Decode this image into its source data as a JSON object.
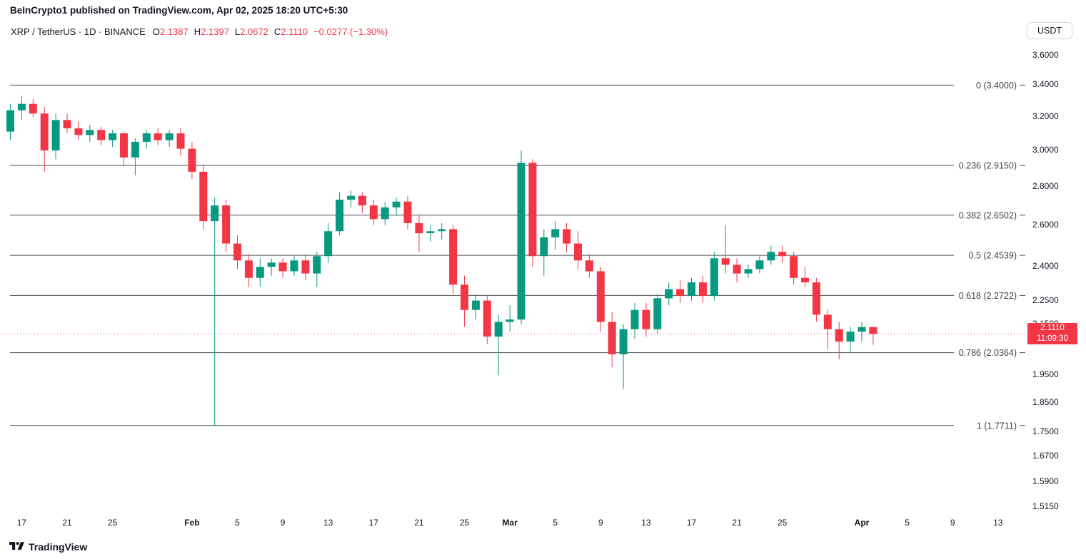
{
  "header": {
    "attribution": "BeInCrypto1 published on TradingView.com, Apr 02, 2025 18:20 UTC+5:30"
  },
  "legend": {
    "title": "XRP / TetherUS · 1D · BINANCE",
    "items": [
      {
        "label": "O",
        "value": "2.1387"
      },
      {
        "label": "H",
        "value": "2.1397"
      },
      {
        "label": "L",
        "value": "2.0672"
      },
      {
        "label": "C",
        "value": "2.1110"
      }
    ],
    "change": "−0.0277 (−1.30%)",
    "value_color": "#f23645"
  },
  "toolbar": {
    "currency_label": "USDT"
  },
  "price_axis": {
    "labels": [
      {
        "label": "3.6000",
        "value": 3.6
      },
      {
        "label": "3.4000",
        "value": 3.4
      },
      {
        "label": "3.2000",
        "value": 3.2
      },
      {
        "label": "3.0000",
        "value": 3.0
      },
      {
        "label": "2.8000",
        "value": 2.8
      },
      {
        "label": "2.6000",
        "value": 2.6
      },
      {
        "label": "2.4000",
        "value": 2.4
      },
      {
        "label": "2.2500",
        "value": 2.25
      },
      {
        "label": "2.1500",
        "value": 2.15
      },
      {
        "label": "1.9500",
        "value": 1.95
      },
      {
        "label": "1.8500",
        "value": 1.85
      },
      {
        "label": "1.7500",
        "value": 1.75
      },
      {
        "label": "1.6700",
        "value": 1.67
      },
      {
        "label": "1.5900",
        "value": 1.59
      },
      {
        "label": "1.5150",
        "value": 1.515
      }
    ],
    "badge": {
      "price": "2.1110",
      "countdown": "11:09:30",
      "color": "#f23645"
    }
  },
  "time_axis": {
    "labels": [
      {
        "label": "17",
        "i": 1,
        "bold": false
      },
      {
        "label": "21",
        "i": 5,
        "bold": false
      },
      {
        "label": "25",
        "i": 9,
        "bold": false
      },
      {
        "label": "Feb",
        "i": 16,
        "bold": true
      },
      {
        "label": "5",
        "i": 20,
        "bold": false
      },
      {
        "label": "9",
        "i": 24,
        "bold": false
      },
      {
        "label": "13",
        "i": 28,
        "bold": false
      },
      {
        "label": "17",
        "i": 32,
        "bold": false
      },
      {
        "label": "21",
        "i": 36,
        "bold": false
      },
      {
        "label": "25",
        "i": 40,
        "bold": false
      },
      {
        "label": "Mar",
        "i": 44,
        "bold": true
      },
      {
        "label": "5",
        "i": 48,
        "bold": false
      },
      {
        "label": "9",
        "i": 52,
        "bold": false
      },
      {
        "label": "13",
        "i": 56,
        "bold": false
      },
      {
        "label": "17",
        "i": 60,
        "bold": false
      },
      {
        "label": "21",
        "i": 64,
        "bold": false
      },
      {
        "label": "25",
        "i": 68,
        "bold": false
      },
      {
        "label": "Apr",
        "i": 75,
        "bold": true
      },
      {
        "label": "5",
        "i": 79,
        "bold": false
      },
      {
        "label": "9",
        "i": 83,
        "bold": false
      },
      {
        "label": "13",
        "i": 87,
        "bold": false
      }
    ]
  },
  "fib_levels": [
    {
      "ratio": "0",
      "price": 3.4,
      "label": "0 (3.4000)"
    },
    {
      "ratio": "0.236",
      "price": 2.915,
      "label": "0.236 (2.9150)"
    },
    {
      "ratio": "0.382",
      "price": 2.6502,
      "label": "0.382 (2.6502)"
    },
    {
      "ratio": "0.5",
      "price": 2.4539,
      "label": "0.5 (2.4539)"
    },
    {
      "ratio": "0.618",
      "price": 2.2722,
      "label": "0.618 (2.2722)"
    },
    {
      "ratio": "0.786",
      "price": 2.0364,
      "label": "0.786 (2.0364)"
    },
    {
      "ratio": "1",
      "price": 1.7711,
      "label": "1 (1.7711)"
    }
  ],
  "watermark": {
    "text": "TradingView"
  },
  "chart_data": {
    "type": "candlestick",
    "symbol": "XRP/TetherUS",
    "exchange": "BINANCE",
    "interval": "1D",
    "scale": "log",
    "up_color": "#089981",
    "down_color": "#f23645",
    "fib_color": "#4a4d55",
    "last_price": 2.111,
    "change_abs": -0.0277,
    "change_pct": -1.3,
    "x_start_date": "2025-01-16",
    "x_end_date": "2025-04-02",
    "visible_price_range": [
      1.515,
      3.7
    ],
    "candles": [
      {
        "d": "Jan 16",
        "o": 3.11,
        "h": 3.28,
        "l": 3.06,
        "c": 3.24
      },
      {
        "d": "Jan 17",
        "o": 3.24,
        "h": 3.33,
        "l": 3.18,
        "c": 3.28
      },
      {
        "d": "Jan 18",
        "o": 3.28,
        "h": 3.31,
        "l": 3.2,
        "c": 3.22
      },
      {
        "d": "Jan 19",
        "o": 3.22,
        "h": 3.26,
        "l": 2.88,
        "c": 3.0
      },
      {
        "d": "Jan 20",
        "o": 3.0,
        "h": 3.22,
        "l": 2.95,
        "c": 3.18
      },
      {
        "d": "Jan 21",
        "o": 3.18,
        "h": 3.22,
        "l": 3.1,
        "c": 3.13
      },
      {
        "d": "Jan 22",
        "o": 3.13,
        "h": 3.17,
        "l": 3.06,
        "c": 3.09
      },
      {
        "d": "Jan 23",
        "o": 3.09,
        "h": 3.15,
        "l": 3.05,
        "c": 3.12
      },
      {
        "d": "Jan 24",
        "o": 3.12,
        "h": 3.14,
        "l": 3.03,
        "c": 3.06
      },
      {
        "d": "Jan 25",
        "o": 3.06,
        "h": 3.12,
        "l": 3.02,
        "c": 3.1
      },
      {
        "d": "Jan 26",
        "o": 3.1,
        "h": 3.11,
        "l": 2.92,
        "c": 2.96
      },
      {
        "d": "Jan 27",
        "o": 2.96,
        "h": 3.07,
        "l": 2.86,
        "c": 3.05
      },
      {
        "d": "Jan 28",
        "o": 3.05,
        "h": 3.12,
        "l": 3.01,
        "c": 3.1
      },
      {
        "d": "Jan 29",
        "o": 3.1,
        "h": 3.13,
        "l": 3.03,
        "c": 3.06
      },
      {
        "d": "Jan 30",
        "o": 3.06,
        "h": 3.12,
        "l": 3.02,
        "c": 3.1
      },
      {
        "d": "Jan 31",
        "o": 3.1,
        "h": 3.13,
        "l": 2.97,
        "c": 3.01
      },
      {
        "d": "Feb 1",
        "o": 3.01,
        "h": 3.05,
        "l": 2.84,
        "c": 2.88
      },
      {
        "d": "Feb 2",
        "o": 2.88,
        "h": 2.92,
        "l": 2.58,
        "c": 2.62
      },
      {
        "d": "Feb 3",
        "o": 2.62,
        "h": 2.74,
        "l": 1.7711,
        "c": 2.7
      },
      {
        "d": "Feb 4",
        "o": 2.7,
        "h": 2.73,
        "l": 2.47,
        "c": 2.51
      },
      {
        "d": "Feb 5",
        "o": 2.51,
        "h": 2.55,
        "l": 2.39,
        "c": 2.43
      },
      {
        "d": "Feb 6",
        "o": 2.43,
        "h": 2.46,
        "l": 2.31,
        "c": 2.35
      },
      {
        "d": "Feb 7",
        "o": 2.35,
        "h": 2.44,
        "l": 2.31,
        "c": 2.4
      },
      {
        "d": "Feb 8",
        "o": 2.4,
        "h": 2.44,
        "l": 2.36,
        "c": 2.42
      },
      {
        "d": "Feb 9",
        "o": 2.42,
        "h": 2.44,
        "l": 2.35,
        "c": 2.38
      },
      {
        "d": "Feb 10",
        "o": 2.38,
        "h": 2.45,
        "l": 2.36,
        "c": 2.43
      },
      {
        "d": "Feb 11",
        "o": 2.43,
        "h": 2.46,
        "l": 2.34,
        "c": 2.37
      },
      {
        "d": "Feb 12",
        "o": 2.37,
        "h": 2.47,
        "l": 2.31,
        "c": 2.45
      },
      {
        "d": "Feb 13",
        "o": 2.45,
        "h": 2.61,
        "l": 2.42,
        "c": 2.57
      },
      {
        "d": "Feb 14",
        "o": 2.57,
        "h": 2.77,
        "l": 2.55,
        "c": 2.73
      },
      {
        "d": "Feb 15",
        "o": 2.73,
        "h": 2.78,
        "l": 2.69,
        "c": 2.75
      },
      {
        "d": "Feb 16",
        "o": 2.75,
        "h": 2.77,
        "l": 2.66,
        "c": 2.7
      },
      {
        "d": "Feb 17",
        "o": 2.7,
        "h": 2.73,
        "l": 2.6,
        "c": 2.63
      },
      {
        "d": "Feb 18",
        "o": 2.63,
        "h": 2.72,
        "l": 2.6,
        "c": 2.69
      },
      {
        "d": "Feb 19",
        "o": 2.69,
        "h": 2.74,
        "l": 2.65,
        "c": 2.72
      },
      {
        "d": "Feb 20",
        "o": 2.72,
        "h": 2.75,
        "l": 2.58,
        "c": 2.61
      },
      {
        "d": "Feb 21",
        "o": 2.61,
        "h": 2.65,
        "l": 2.47,
        "c": 2.56
      },
      {
        "d": "Feb 22",
        "o": 2.56,
        "h": 2.6,
        "l": 2.52,
        "c": 2.57
      },
      {
        "d": "Feb 23",
        "o": 2.57,
        "h": 2.61,
        "l": 2.53,
        "c": 2.58
      },
      {
        "d": "Feb 24",
        "o": 2.58,
        "h": 2.6,
        "l": 2.28,
        "c": 2.32
      },
      {
        "d": "Feb 25",
        "o": 2.32,
        "h": 2.36,
        "l": 2.14,
        "c": 2.21
      },
      {
        "d": "Feb 26",
        "o": 2.21,
        "h": 2.28,
        "l": 2.17,
        "c": 2.25
      },
      {
        "d": "Feb 27",
        "o": 2.25,
        "h": 2.27,
        "l": 2.07,
        "c": 2.1
      },
      {
        "d": "Feb 28",
        "o": 2.1,
        "h": 2.19,
        "l": 1.95,
        "c": 2.16
      },
      {
        "d": "Mar 1",
        "o": 2.16,
        "h": 2.23,
        "l": 2.12,
        "c": 2.17
      },
      {
        "d": "Mar 2",
        "o": 2.17,
        "h": 3.0,
        "l": 2.15,
        "c": 2.93
      },
      {
        "d": "Mar 3",
        "o": 2.93,
        "h": 2.95,
        "l": 2.4,
        "c": 2.45
      },
      {
        "d": "Mar 4",
        "o": 2.45,
        "h": 2.58,
        "l": 2.36,
        "c": 2.54
      },
      {
        "d": "Mar 5",
        "o": 2.54,
        "h": 2.62,
        "l": 2.48,
        "c": 2.58
      },
      {
        "d": "Mar 6",
        "o": 2.58,
        "h": 2.61,
        "l": 2.47,
        "c": 2.51
      },
      {
        "d": "Mar 7",
        "o": 2.51,
        "h": 2.57,
        "l": 2.39,
        "c": 2.43
      },
      {
        "d": "Mar 8",
        "o": 2.43,
        "h": 2.46,
        "l": 2.35,
        "c": 2.38
      },
      {
        "d": "Mar 9",
        "o": 2.38,
        "h": 2.4,
        "l": 2.12,
        "c": 2.16
      },
      {
        "d": "Mar 10",
        "o": 2.16,
        "h": 2.2,
        "l": 1.98,
        "c": 2.03
      },
      {
        "d": "Mar 11",
        "o": 2.03,
        "h": 2.15,
        "l": 1.9,
        "c": 2.13
      },
      {
        "d": "Mar 12",
        "o": 2.13,
        "h": 2.24,
        "l": 2.09,
        "c": 2.21
      },
      {
        "d": "Mar 13",
        "o": 2.21,
        "h": 2.24,
        "l": 2.1,
        "c": 2.13
      },
      {
        "d": "Mar 14",
        "o": 2.13,
        "h": 2.28,
        "l": 2.11,
        "c": 2.26
      },
      {
        "d": "Mar 15",
        "o": 2.26,
        "h": 2.33,
        "l": 2.23,
        "c": 2.3
      },
      {
        "d": "Mar 16",
        "o": 2.3,
        "h": 2.34,
        "l": 2.24,
        "c": 2.27
      },
      {
        "d": "Mar 17",
        "o": 2.27,
        "h": 2.35,
        "l": 2.25,
        "c": 2.33
      },
      {
        "d": "Mar 18",
        "o": 2.33,
        "h": 2.36,
        "l": 2.24,
        "c": 2.27
      },
      {
        "d": "Mar 19",
        "o": 2.27,
        "h": 2.47,
        "l": 2.25,
        "c": 2.44
      },
      {
        "d": "Mar 20",
        "o": 2.44,
        "h": 2.6,
        "l": 2.37,
        "c": 2.41
      },
      {
        "d": "Mar 21",
        "o": 2.41,
        "h": 2.44,
        "l": 2.33,
        "c": 2.37
      },
      {
        "d": "Mar 22",
        "o": 2.37,
        "h": 2.41,
        "l": 2.35,
        "c": 2.39
      },
      {
        "d": "Mar 23",
        "o": 2.39,
        "h": 2.45,
        "l": 2.37,
        "c": 2.43
      },
      {
        "d": "Mar 24",
        "o": 2.43,
        "h": 2.5,
        "l": 2.41,
        "c": 2.47
      },
      {
        "d": "Mar 25",
        "o": 2.47,
        "h": 2.5,
        "l": 2.42,
        "c": 2.45
      },
      {
        "d": "Mar 26",
        "o": 2.45,
        "h": 2.47,
        "l": 2.32,
        "c": 2.35
      },
      {
        "d": "Mar 27",
        "o": 2.35,
        "h": 2.4,
        "l": 2.31,
        "c": 2.33
      },
      {
        "d": "Mar 28",
        "o": 2.33,
        "h": 2.35,
        "l": 2.16,
        "c": 2.19
      },
      {
        "d": "Mar 29",
        "o": 2.19,
        "h": 2.21,
        "l": 2.05,
        "c": 2.13
      },
      {
        "d": "Mar 30",
        "o": 2.13,
        "h": 2.16,
        "l": 2.01,
        "c": 2.08
      },
      {
        "d": "Mar 31",
        "o": 2.08,
        "h": 2.14,
        "l": 2.04,
        "c": 2.12
      },
      {
        "d": "Apr 1",
        "o": 2.12,
        "h": 2.16,
        "l": 2.08,
        "c": 2.1387
      },
      {
        "d": "Apr 2",
        "o": 2.1387,
        "h": 2.1397,
        "l": 2.0672,
        "c": 2.111
      }
    ]
  }
}
